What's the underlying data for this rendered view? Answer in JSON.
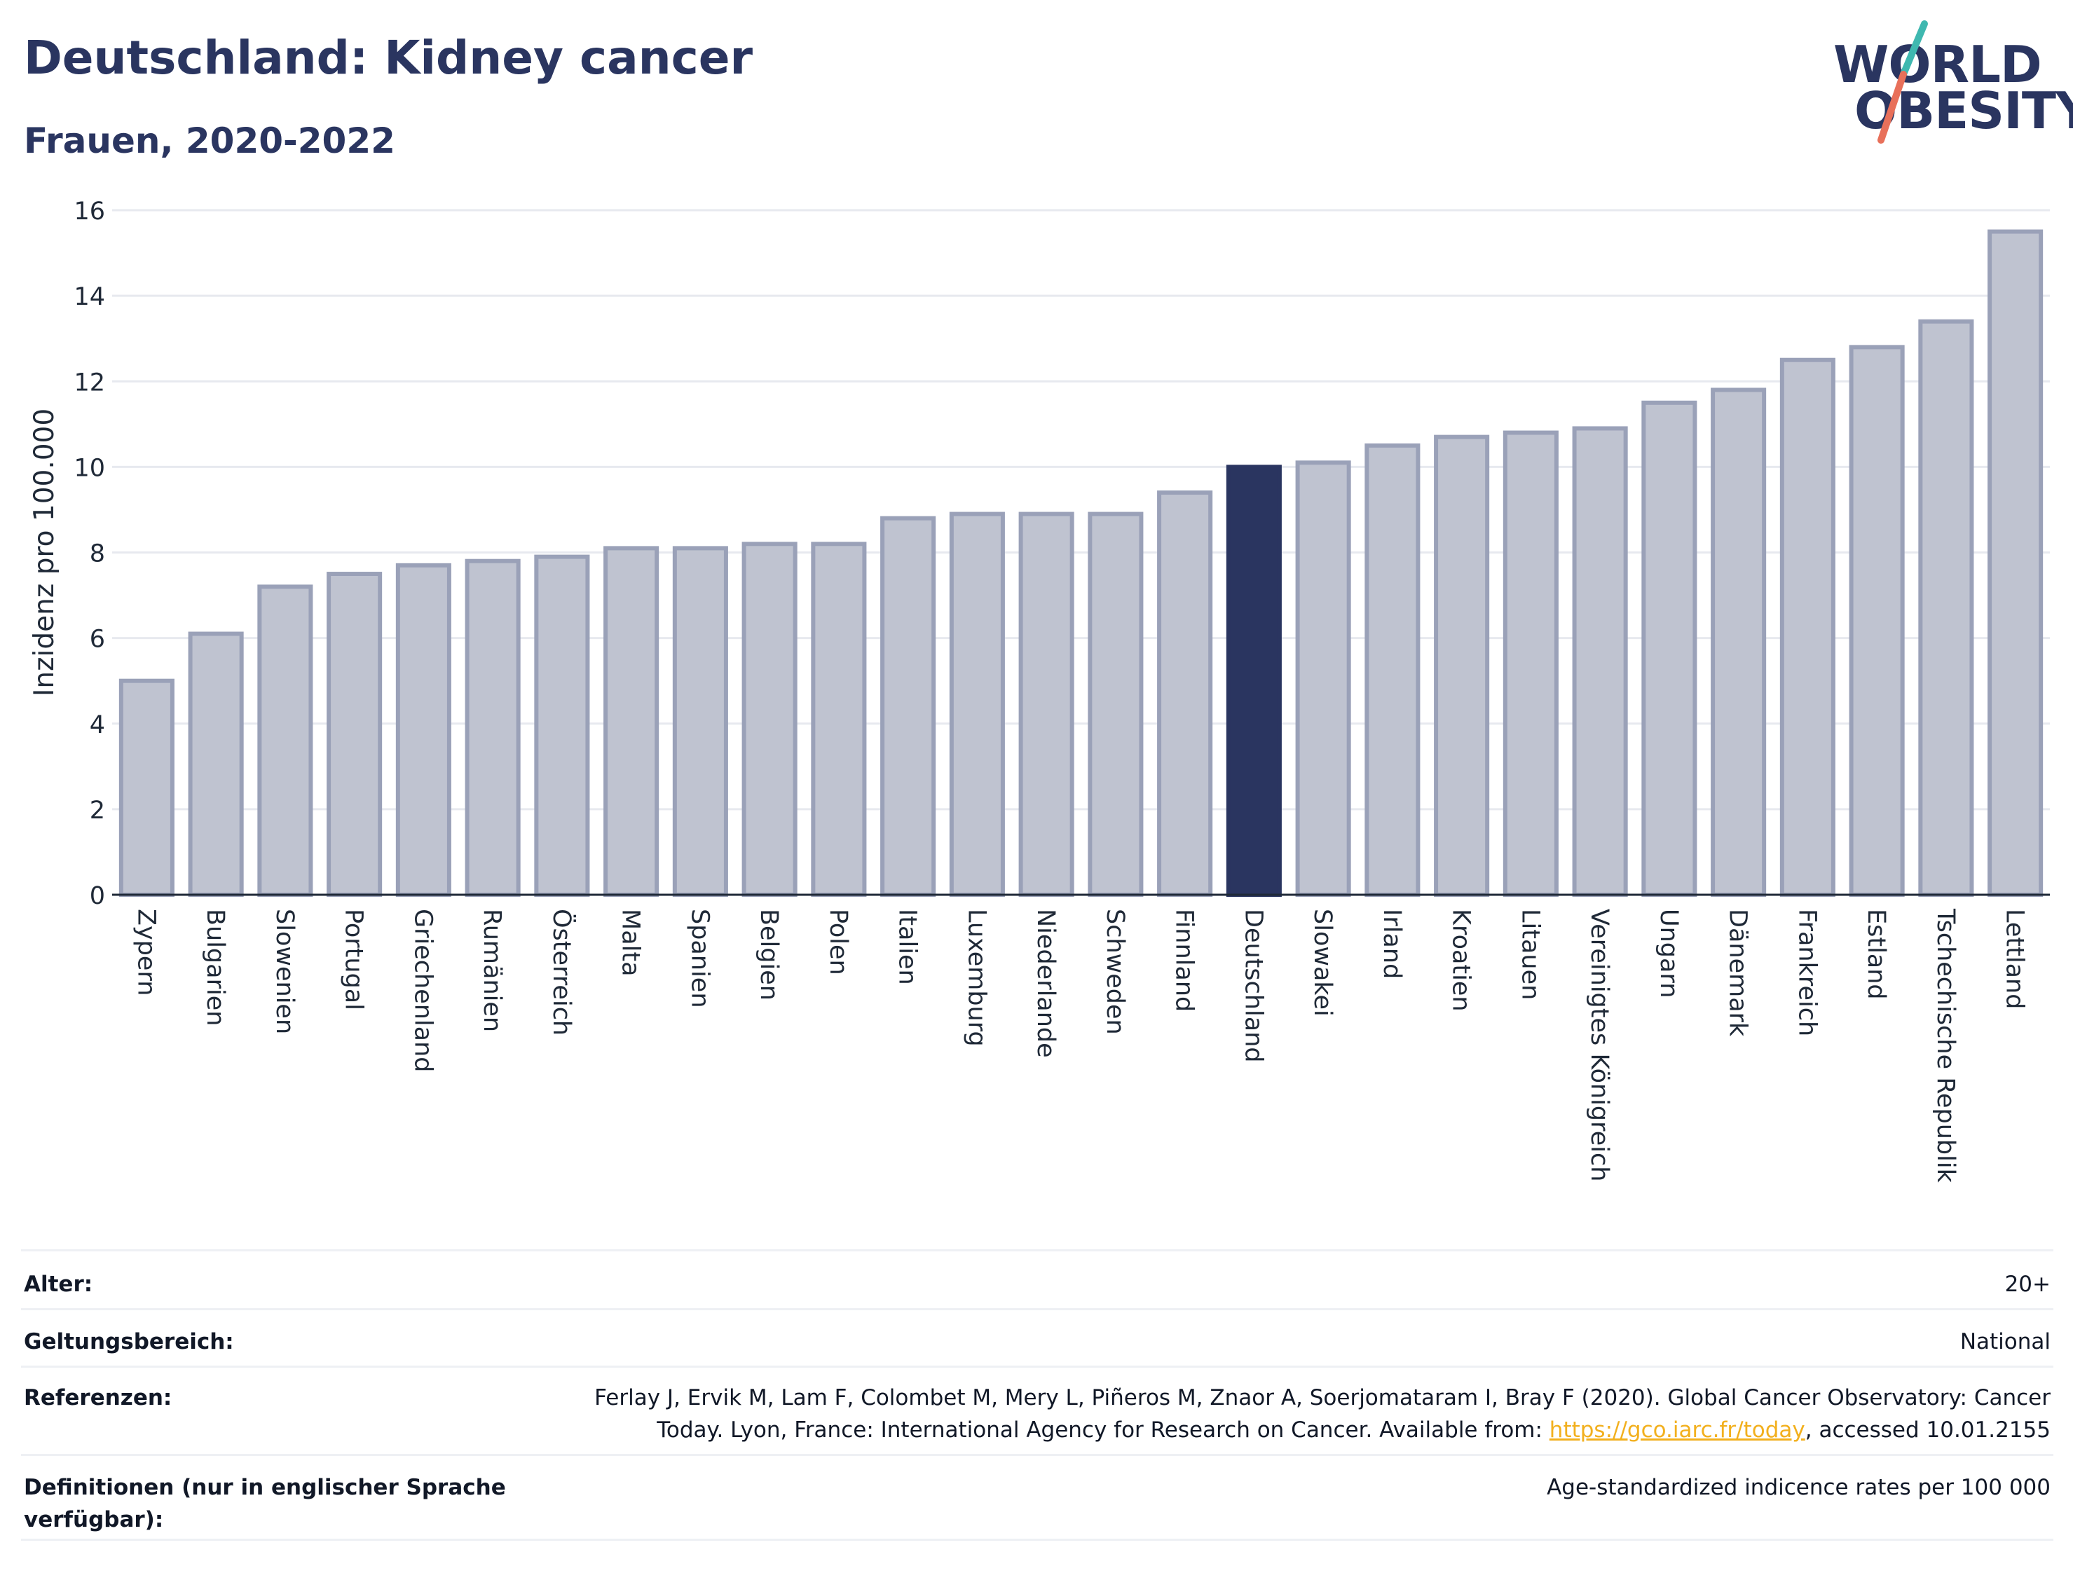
{
  "header": {
    "title": "Deutschland: Kidney cancer",
    "subtitle": "Frauen, 2020-2022"
  },
  "logo": {
    "line1": "WORLD",
    "line2": "OBESITY",
    "colors": {
      "navy": "#2a3560",
      "teal": "#3fb8b0",
      "coral": "#e8705a"
    }
  },
  "chart_data": {
    "type": "bar",
    "title": "",
    "xlabel": "",
    "ylabel": "Inzidenz pro 100.000",
    "ylim": [
      0,
      16
    ],
    "yticks": [
      0,
      2,
      4,
      6,
      8,
      10,
      12,
      14,
      16
    ],
    "grid": true,
    "highlight": "Deutschland",
    "colors": {
      "bar": "#bfc3d0",
      "bar_border": "#9aa1b8",
      "highlight": "#2a3560"
    },
    "categories": [
      "Zypern",
      "Bulgarien",
      "Slowenien",
      "Portugal",
      "Griechenland",
      "Rumänien",
      "Österreich",
      "Malta",
      "Spanien",
      "Belgien",
      "Polen",
      "Italien",
      "Luxemburg",
      "Niederlande",
      "Schweden",
      "Finnland",
      "Deutschland",
      "Slowakei",
      "Irland",
      "Kroatien",
      "Litauen",
      "Vereinigtes Königreich",
      "Ungarn",
      "Dänemark",
      "Frankreich",
      "Estland",
      "Tschechische Republik",
      "Lettland"
    ],
    "values": [
      5.0,
      6.1,
      7.2,
      7.5,
      7.7,
      7.8,
      7.9,
      8.1,
      8.1,
      8.2,
      8.2,
      8.8,
      8.9,
      8.9,
      8.9,
      9.4,
      10.0,
      10.1,
      10.5,
      10.7,
      10.8,
      10.9,
      11.5,
      11.8,
      12.5,
      12.8,
      13.4,
      15.5
    ]
  },
  "info": {
    "age_label": "Alter:",
    "age_value": "20+",
    "scope_label": "Geltungsbereich:",
    "scope_value": "National",
    "references_label": "Referenzen:",
    "references_line1": "Ferlay J, Ervik M, Lam F, Colombet M, Mery L, Piñeros M, Znaor A, Soerjomataram I, Bray F (2020). Global Cancer Observatory: Cancer",
    "references_line2_pre": "Today. Lyon, France: International Agency for Research on Cancer. Available from: ",
    "references_link": "https://gco.iarc.fr/today",
    "references_line2_post": ", accessed 10.01.2155",
    "definitions_label_line1": "Definitionen (nur in englischer Sprache",
    "definitions_label_line2": "verfügbar):",
    "definitions_value": "Age-standardized indicence rates per 100 000"
  }
}
